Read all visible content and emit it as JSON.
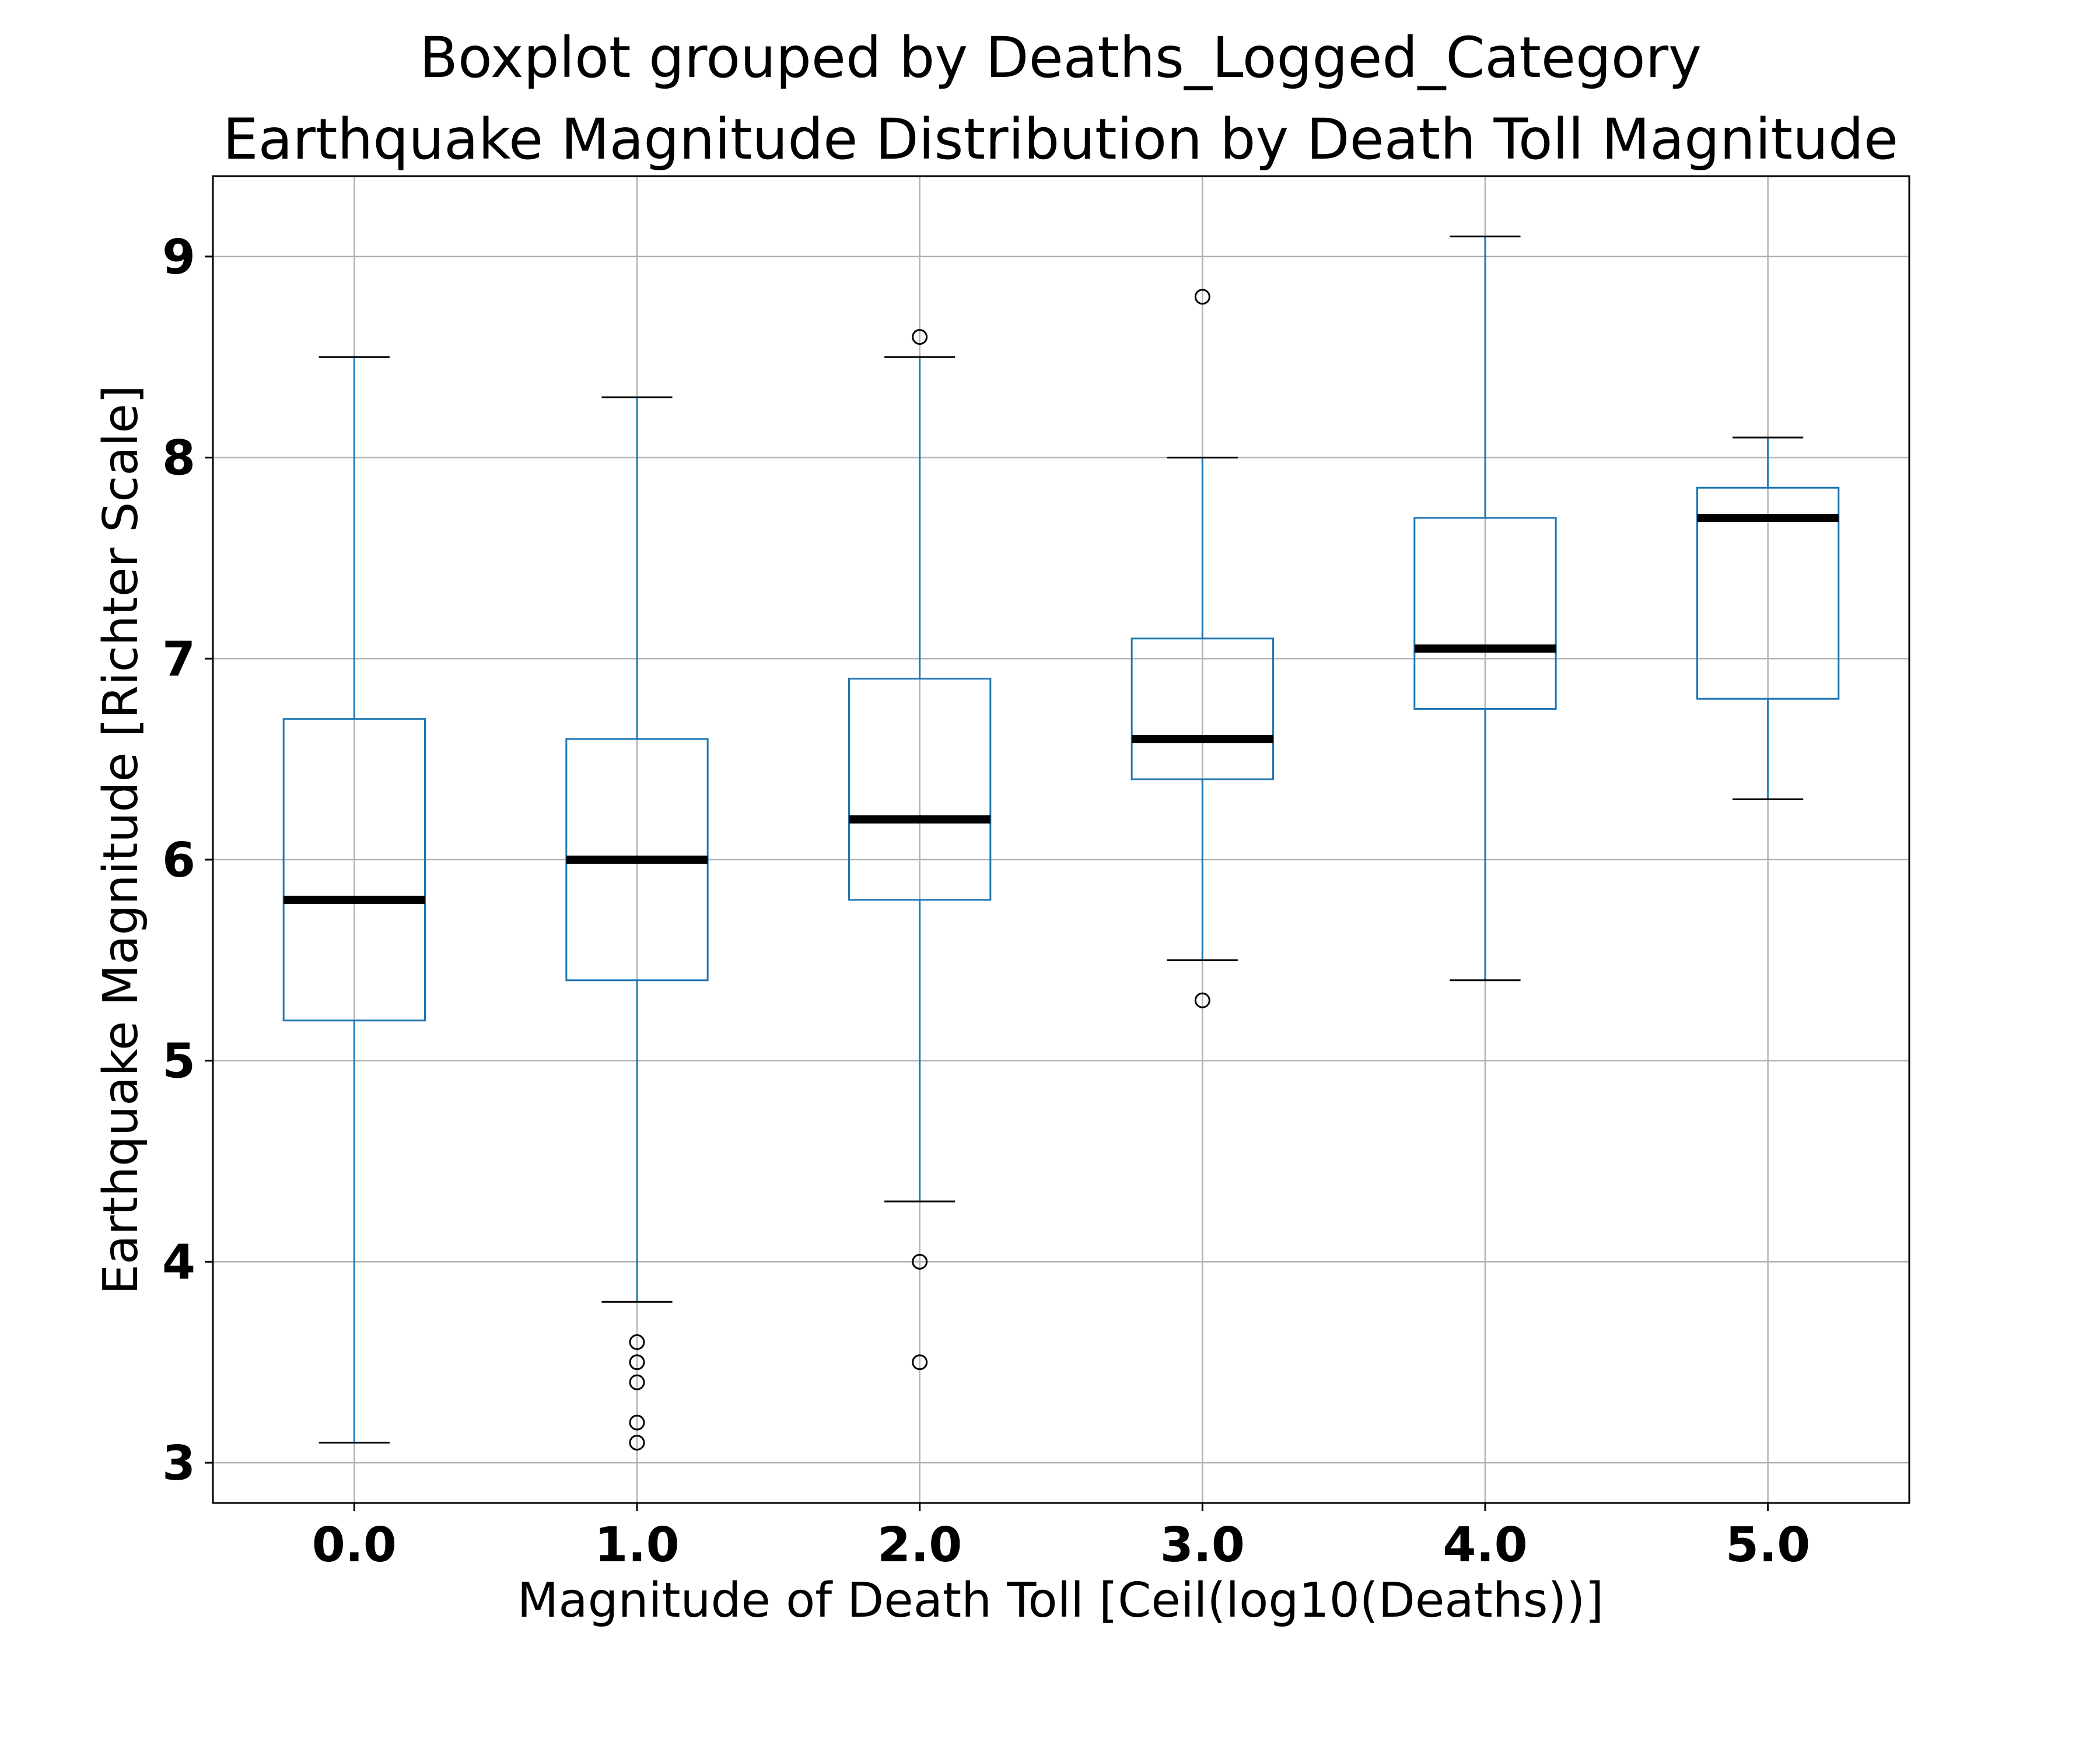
{
  "chart_data": {
    "type": "boxplot",
    "title": "Boxplot grouped by Deaths_Logged_Category",
    "subtitle": "Earthquake Magnitude Distribution by Death Toll Magnitude",
    "xlabel": "Magnitude of Death Toll [Ceil(log10(Deaths))]",
    "ylabel": "Earthquake Magnitude [Richter Scale]",
    "ylim": [
      2.8,
      9.4
    ],
    "yticks": [
      "3",
      "4",
      "5",
      "6",
      "7",
      "8",
      "9"
    ],
    "categories": [
      "0.0",
      "1.0",
      "2.0",
      "3.0",
      "4.0",
      "5.0"
    ],
    "grid": true,
    "colors": {
      "box": "#1f77b4",
      "median": "#000000",
      "cap": "#000000",
      "flier": "#000000",
      "grid": "#b0b0b0"
    },
    "boxes": [
      {
        "category": "0.0",
        "whisker_low": 3.1,
        "q1": 5.2,
        "median": 5.8,
        "q3": 6.7,
        "whisker_high": 8.5,
        "outliers": []
      },
      {
        "category": "1.0",
        "whisker_low": 3.8,
        "q1": 5.4,
        "median": 6.0,
        "q3": 6.6,
        "whisker_high": 8.3,
        "outliers": [
          3.6,
          3.5,
          3.4,
          3.2,
          3.1
        ]
      },
      {
        "category": "2.0",
        "whisker_low": 4.3,
        "q1": 5.8,
        "median": 6.2,
        "q3": 6.9,
        "whisker_high": 8.5,
        "outliers": [
          8.6,
          4.0,
          3.5
        ]
      },
      {
        "category": "3.0",
        "whisker_low": 5.5,
        "q1": 6.4,
        "median": 6.6,
        "q3": 7.1,
        "whisker_high": 8.0,
        "outliers": [
          8.8,
          5.3
        ]
      },
      {
        "category": "4.0",
        "whisker_low": 5.4,
        "q1": 6.75,
        "median": 7.05,
        "q3": 7.7,
        "whisker_high": 9.1,
        "outliers": []
      },
      {
        "category": "5.0",
        "whisker_low": 6.3,
        "q1": 6.8,
        "median": 7.7,
        "q3": 7.85,
        "whisker_high": 8.1,
        "outliers": []
      }
    ]
  }
}
